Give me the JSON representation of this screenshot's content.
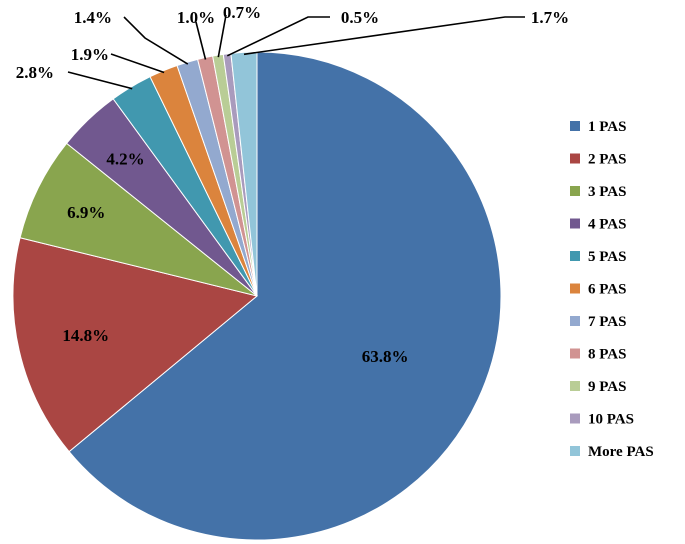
{
  "chart_data": {
    "type": "pie",
    "categories": [
      "1 PAS",
      "2 PAS",
      "3 PAS",
      "4 PAS",
      "5 PAS",
      "6 PAS",
      "7 PAS",
      "8 PAS",
      "9 PAS",
      "10 PAS",
      "More PAS"
    ],
    "values": [
      63.8,
      14.8,
      6.9,
      4.2,
      2.8,
      1.9,
      1.4,
      1.0,
      0.7,
      0.5,
      1.7
    ],
    "data_labels": [
      "63.8%",
      "14.8%",
      "6.9%",
      "4.2%",
      "2.8%",
      "1.9%",
      "1.4%",
      "1.0%",
      "0.7%",
      "0.5%",
      "1.7%"
    ],
    "colors": [
      "#4472A8",
      "#AA4643",
      "#89A54E",
      "#71588F",
      "#4198AF",
      "#DB843D",
      "#93A9CF",
      "#D19392",
      "#B9CD96",
      "#A99BBD",
      "#92C5D9"
    ],
    "title": "",
    "start_angle_deg": 0,
    "direction": "clockwise",
    "legend_position": "right"
  }
}
